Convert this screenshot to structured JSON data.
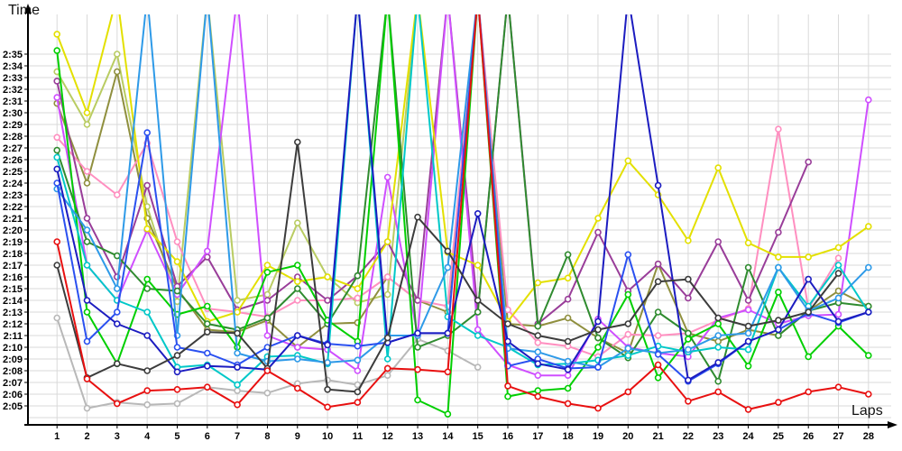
{
  "axes": {
    "y_title": "Time",
    "x_title": "Laps"
  },
  "chart_data": {
    "type": "line",
    "title": "",
    "xlabel": "Laps",
    "ylabel": "Time",
    "x_ticks": [
      1,
      2,
      3,
      4,
      5,
      6,
      7,
      8,
      9,
      10,
      11,
      12,
      13,
      14,
      15,
      16,
      17,
      18,
      19,
      20,
      21,
      22,
      23,
      24,
      25,
      26,
      27,
      28
    ],
    "y_tick_labels": [
      "2:05",
      "2:06",
      "2:07",
      "2:08",
      "2:09",
      "2:10",
      "2:11",
      "2:12",
      "2:13",
      "2:14",
      "2:15",
      "2:16",
      "2:17",
      "2:18",
      "2:19",
      "2:20",
      "2:21",
      "2:22",
      "2:23",
      "2:24",
      "2:25",
      "2:26",
      "2:27",
      "2:28",
      "2:29",
      "2:30",
      "2:31",
      "2:32",
      "2:33",
      "2:34",
      "2:35"
    ],
    "y_range_seconds": [
      125,
      155
    ],
    "grid": true,
    "legend": "none",
    "off_scale_value": 160,
    "off_scale_meaning": "lap time far above 2:35 - line exits through the top of the plot (pit/out lap)",
    "units": "lap time in seconds (125 = 2:05)",
    "series": [
      {
        "name": "silver",
        "color": "#b8b8b8",
        "values": [
          132.5,
          124.8,
          125.3,
          125.1,
          125.2,
          126.6,
          126.3,
          126.1,
          126.9,
          127.2,
          126.8,
          127.6,
          130.7,
          129.7,
          128.3,
          null,
          null,
          null,
          null,
          null,
          null,
          null,
          null,
          null,
          null,
          null,
          null,
          null
        ]
      },
      {
        "name": "khaki",
        "color": "#b9cc62",
        "values": [
          153.5,
          149,
          155,
          142,
          133.9,
          160,
          134,
          134.5,
          140.6,
          136,
          133.8,
          134.5,
          160,
          null,
          null,
          null,
          null,
          null,
          null,
          null,
          null,
          null,
          null,
          null,
          null,
          null,
          null,
          null
        ]
      },
      {
        "name": "olive",
        "color": "#8f8f3e",
        "values": [
          150.8,
          144,
          153.5,
          141,
          135,
          131.5,
          131.3,
          132.3,
          130,
          132,
          132.1,
          136,
          134,
          133,
          160,
          132,
          131.8,
          132.5,
          130.8,
          129.5,
          137.1,
          131.2,
          130.5,
          131.5,
          131,
          133.1,
          134.8,
          133.5
        ]
      },
      {
        "name": "pink",
        "color": "#ff8fc0",
        "values": [
          147.9,
          145,
          143,
          147.4,
          139,
          133.3,
          133,
          132.6,
          134,
          134,
          134.2,
          136,
          134,
          133.5,
          160,
          133.2,
          130.4,
          130.1,
          129.2,
          131.1,
          131,
          131.2,
          132.3,
          133.3,
          148.6,
          133.3,
          137.6,
          null
        ]
      },
      {
        "name": "purple",
        "color": "#993d99",
        "values": [
          152.7,
          141,
          136,
          143.8,
          135.2,
          137.7,
          133.2,
          134,
          136,
          134,
          136.1,
          139,
          134,
          160,
          133,
          160,
          132,
          134.1,
          139.8,
          134.8,
          137.1,
          134.2,
          139,
          134,
          139.8,
          145.8,
          null,
          null
        ]
      },
      {
        "name": "violet",
        "color": "#cf4fff",
        "values": [
          151.3,
          137,
          134,
          140,
          134.5,
          138.2,
          160,
          131,
          130,
          129.8,
          128,
          144.5,
          131,
          160,
          131.5,
          128.5,
          127.6,
          127.6,
          132.4,
          130,
          129.5,
          129.2,
          132.5,
          133.2,
          132,
          132.7,
          132.8,
          151.1
        ]
      },
      {
        "name": "yellow",
        "color": "#e3e000",
        "values": [
          156.7,
          150,
          160,
          140.1,
          137.3,
          132.2,
          133,
          137,
          135.6,
          136,
          135,
          139,
          160,
          138.1,
          137,
          132.2,
          135.5,
          135.9,
          141,
          145.9,
          143,
          139.1,
          145.3,
          138.9,
          137.7,
          137.7,
          138.5,
          140.3
        ]
      },
      {
        "name": "forest",
        "color": "#2f8b2f",
        "values": [
          146.8,
          139,
          137.8,
          135,
          134.8,
          132,
          131.5,
          132.5,
          135,
          132,
          136.1,
          160,
          130,
          131,
          133,
          160,
          131.8,
          137.9,
          130.8,
          129.1,
          133,
          131.2,
          127.1,
          136.8,
          131,
          133.1,
          133.8,
          133.5
        ]
      },
      {
        "name": "green",
        "color": "#00cf00",
        "values": [
          155.3,
          133,
          128.6,
          135.8,
          132.8,
          133.5,
          130,
          136.4,
          137,
          132.3,
          130.5,
          160,
          125.5,
          124.3,
          160,
          125.8,
          126.3,
          126.5,
          130,
          134.5,
          127.4,
          130.7,
          132,
          128.4,
          134.7,
          129.2,
          131.8,
          129.3
        ]
      },
      {
        "name": "cyan",
        "color": "#00c8c8",
        "values": [
          146.2,
          137,
          134,
          133,
          128.3,
          128.5,
          126.8,
          129.2,
          129.3,
          128.6,
          160,
          129,
          160,
          132.6,
          131,
          130,
          128.5,
          128.6,
          128.9,
          129.3,
          130.1,
          129.6,
          130,
          129.8,
          136.8,
          133.5,
          137,
          133
        ]
      },
      {
        "name": "skyblue",
        "color": "#2e9ae8",
        "values": [
          143.5,
          140,
          135,
          160,
          131,
          160,
          129.5,
          128.8,
          129,
          128.7,
          128.9,
          131,
          131,
          136.8,
          160,
          129.9,
          129.6,
          128.8,
          128.3,
          129.9,
          129.5,
          129.8,
          131,
          131.2,
          136.8,
          133.1,
          134.2,
          136.8
        ]
      },
      {
        "name": "royal",
        "color": "#2a50f0",
        "values": [
          144,
          130.5,
          133,
          148.3,
          130,
          129.5,
          128.5,
          130,
          131,
          130.3,
          130.1,
          130.4,
          131.2,
          131.2,
          160,
          128.4,
          129,
          128.2,
          128.3,
          137.9,
          129.4,
          127.1,
          128.6,
          130.5,
          131.5,
          132.9,
          132.1,
          133
        ]
      },
      {
        "name": "navy",
        "color": "#1c1cc0",
        "values": [
          145.2,
          134,
          132,
          131,
          127.9,
          128.4,
          128.3,
          128.1,
          131,
          130.2,
          160,
          130.4,
          131.2,
          131.2,
          141.4,
          130.5,
          128.6,
          128.1,
          132.2,
          160,
          143.8,
          127.2,
          128.7,
          130.5,
          131.5,
          135.8,
          132.2,
          133
        ]
      },
      {
        "name": "black",
        "color": "#3c3c3c",
        "values": [
          137,
          127.4,
          128.6,
          128,
          129.3,
          131.3,
          131.2,
          128.2,
          147.5,
          126.4,
          126.2,
          130.8,
          141.1,
          138.2,
          134,
          132,
          131,
          130.5,
          131.5,
          132,
          135.6,
          135.8,
          132.5,
          131.8,
          132.3,
          133,
          136.3,
          null
        ]
      },
      {
        "name": "red",
        "color": "#e81010",
        "values": [
          139,
          127.3,
          125.2,
          126.3,
          126.4,
          126.6,
          125.1,
          128,
          126.5,
          124.9,
          125.3,
          128.2,
          128.1,
          127.9,
          160,
          126.7,
          125.8,
          125.2,
          124.8,
          126.2,
          128.5,
          125.4,
          126.2,
          124.7,
          125.3,
          126.2,
          126.6,
          126
        ]
      }
    ],
    "style": {
      "grid_color": "#d9d9d9",
      "axis_color": "#000000",
      "marker": "open-circle-white-fill",
      "line_width": 2
    }
  }
}
